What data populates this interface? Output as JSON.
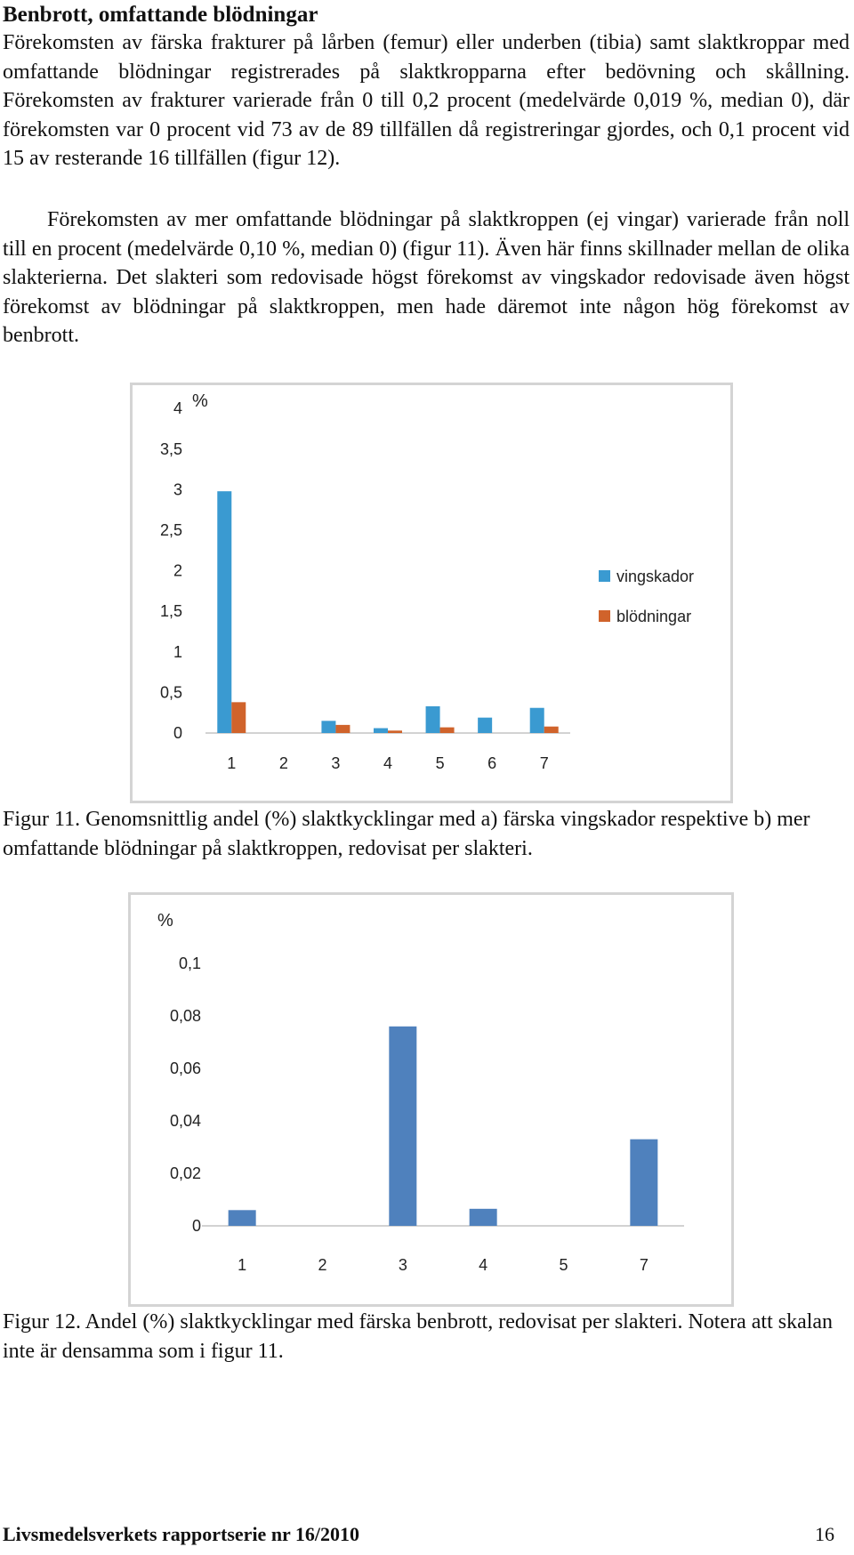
{
  "section_title": "Benbrott, omfattande blödningar",
  "paragraph_1": "Förekomsten av färska frakturer på lårben (femur) eller underben (tibia) samt slaktkroppar med omfattande blödningar registrerades på slaktkropparna efter bedövning och skållning. Förekomsten av frakturer varierade från 0 till 0,2 procent (medelvärde 0,019 %, median 0), där förekomsten var 0 procent vid 73 av de 89 tillfällen då registreringar gjordes, och 0,1 procent vid 15 av resterande 16 tillfällen (figur 12).",
  "paragraph_2": "Förekomsten av mer omfattande blödningar på slaktkroppen (ej vingar) varierade från noll till en procent (medelvärde 0,10 %, median 0) (figur 11). Även här finns skillnader mellan de olika slakterierna. Det slakteri som redovisade högst förekomst av vingskador redovisade även högst förekomst av blödningar på slaktkroppen, men hade däremot inte någon hög förekomst av benbrott.",
  "figure_11_caption": "Figur 11. Genomsnittlig andel (%) slaktkycklingar med a) färska vingskador respektive b) mer omfattande blödningar på slaktkroppen, redovisat per slakteri.",
  "figure_12_caption": "Figur 12. Andel (%) slaktkycklingar med färska benbrott, redovisat per slakteri. Notera att skalan inte är densamma som i figur 11.",
  "footer": {
    "publication": "Livsmedelsverkets rapportserie nr 16/2010",
    "page_number": "16"
  },
  "chart_data": [
    {
      "type": "bar",
      "unit_label": "%",
      "categories": [
        "1",
        "2",
        "3",
        "4",
        "5",
        "6",
        "7"
      ],
      "y_ticks": [
        "0",
        "0,5",
        "1",
        "1,5",
        "2",
        "2,5",
        "3",
        "3,5",
        "4"
      ],
      "ylim": [
        0,
        4
      ],
      "legend_position": "right",
      "series": [
        {
          "name": "vingskador",
          "color": "#3a9ad1",
          "values": [
            2.98,
            0,
            0.15,
            0.06,
            0.33,
            0.19,
            0.31
          ]
        },
        {
          "name": "blödningar",
          "color": "#d0632b",
          "values": [
            0.38,
            0,
            0.1,
            0.03,
            0.07,
            0,
            0.08
          ]
        }
      ]
    },
    {
      "type": "bar",
      "unit_label": "%",
      "categories": [
        "1",
        "2",
        "3",
        "4",
        "5",
        "7"
      ],
      "y_ticks": [
        "0",
        "0,02",
        "0,04",
        "0,06",
        "0,08",
        "0,1"
      ],
      "ylim": [
        0,
        0.1
      ],
      "series": [
        {
          "color": "#4f81bd",
          "values": [
            0.006,
            0,
            0.076,
            0.0065,
            0,
            0.033
          ]
        }
      ]
    }
  ]
}
